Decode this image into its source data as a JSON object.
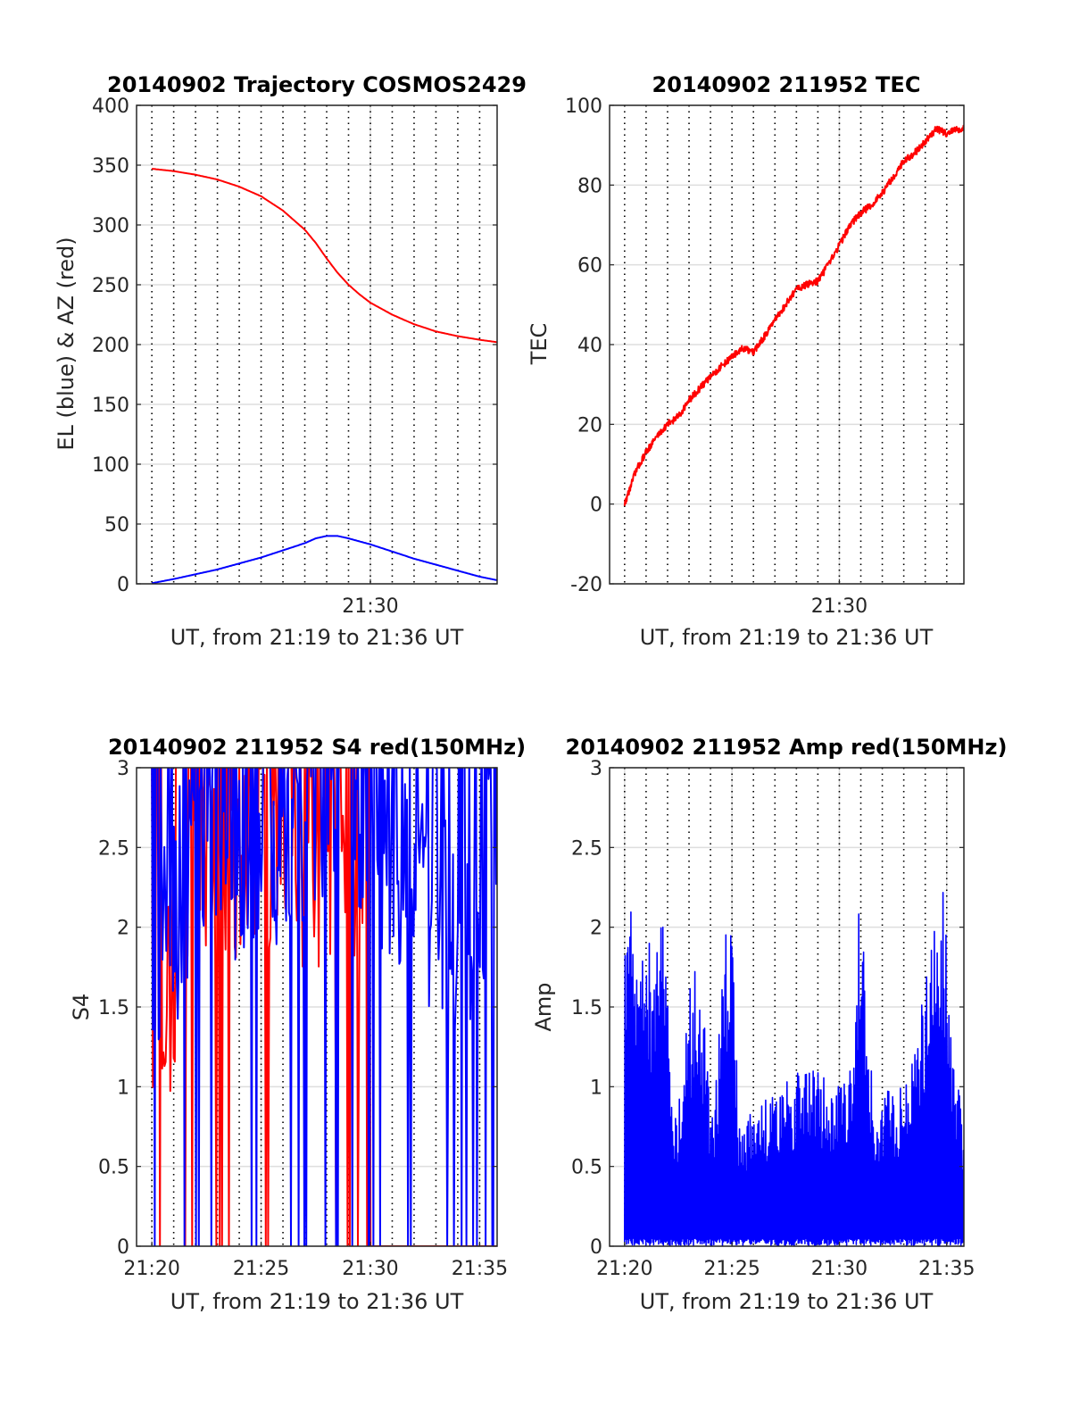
{
  "chart_data": [
    {
      "id": "traj",
      "type": "line",
      "title": "20140902 Trajectory COSMOS2429",
      "xlabel": "UT, from 21:19 to 21:36 UT",
      "ylabel": "EL (blue) & AZ (red)",
      "xlim_min": [
        19.3,
        35.8
      ],
      "ylim": [
        0,
        400
      ],
      "yticks": [
        0,
        50,
        100,
        150,
        200,
        250,
        300,
        350,
        400
      ],
      "xticks": [
        {
          "v": 30,
          "label": "21:30"
        }
      ],
      "grid": true,
      "series": [
        {
          "color": "#ff0000",
          "x": [
            20.0,
            21.0,
            22.0,
            23.0,
            24.0,
            25.0,
            26.0,
            27.0,
            27.5,
            28.0,
            28.5,
            29.0,
            29.5,
            30.0,
            31.0,
            32.0,
            33.0,
            34.0,
            35.0,
            35.8
          ],
          "y": [
            347,
            345,
            342,
            338,
            332,
            324,
            312,
            296,
            285,
            272,
            260,
            250,
            242,
            235,
            225,
            217,
            211,
            207,
            204,
            202
          ]
        },
        {
          "color": "#0000ff",
          "x": [
            20.0,
            21.0,
            22.0,
            23.0,
            24.0,
            25.0,
            26.0,
            27.0,
            27.5,
            28.0,
            28.5,
            29.0,
            30.0,
            31.0,
            32.0,
            33.0,
            34.0,
            35.0,
            35.8
          ],
          "y": [
            0.5,
            4,
            8,
            12,
            17,
            22,
            28,
            34,
            38,
            40,
            40,
            38,
            33,
            27,
            21,
            16,
            11,
            6,
            3
          ]
        }
      ]
    },
    {
      "id": "tec",
      "type": "line",
      "title": "20140902 211952 TEC",
      "xlabel": "UT, from 21:19 to 21:36 UT",
      "ylabel": "TEC",
      "xlim_min": [
        19.3,
        35.8
      ],
      "ylim": [
        -20,
        100
      ],
      "yticks": [
        -20,
        0,
        20,
        40,
        60,
        80,
        100
      ],
      "xticks": [
        {
          "v": 30,
          "label": "21:30"
        }
      ],
      "grid": true,
      "series": [
        {
          "color": "#ff0000",
          "noise": 0.9,
          "x": [
            20.0,
            20.5,
            21.0,
            21.5,
            22.0,
            22.5,
            23.0,
            24.0,
            25.0,
            25.5,
            26.0,
            26.5,
            27.0,
            27.5,
            28.0,
            29.0,
            29.5,
            30.0,
            30.5,
            31.0,
            31.5,
            32.0,
            33.0,
            33.5,
            34.0,
            34.5,
            35.0,
            35.5,
            35.8
          ],
          "y": [
            0,
            8,
            13,
            17,
            20,
            22,
            26,
            32,
            37,
            39,
            38,
            42,
            46,
            50,
            54,
            56,
            60,
            65,
            70,
            73,
            75,
            78,
            86,
            88,
            91,
            94,
            93,
            94,
            94
          ]
        }
      ]
    },
    {
      "id": "s4",
      "type": "line",
      "title": "20140902 211952 S4 red(150MHz)",
      "xlabel": "UT, from 21:19 to 21:36 UT",
      "ylabel": "S4",
      "xlim_min": [
        19.3,
        35.8
      ],
      "ylim": [
        0,
        3
      ],
      "yticks": [
        0,
        0.5,
        1,
        1.5,
        2,
        2.5,
        3
      ],
      "xticks": [
        {
          "v": 20,
          "label": "21:20"
        },
        {
          "v": 25,
          "label": "21:25"
        },
        {
          "v": 30,
          "label": "21:30"
        },
        {
          "v": 35,
          "label": "21:35"
        }
      ],
      "grid": true,
      "series": [
        {
          "color": "#ff0000",
          "style": "noisy",
          "start": 20.0,
          "end": 35.8,
          "n": 300,
          "zeroFrom": 30.0,
          "env_x": [
            20.0,
            20.5,
            21.0,
            22.0,
            23.0,
            24.0,
            26.0,
            28.0,
            29.0,
            30.0
          ],
          "env_y": [
            1.4,
            1.3,
            1.6,
            2.4,
            2.6,
            2.6,
            2.6,
            2.4,
            2.2,
            2.0
          ]
        },
        {
          "color": "#0000ff",
          "style": "noisy",
          "start": 20.0,
          "end": 35.8,
          "n": 360,
          "env_x": [
            20.0,
            21.0,
            22.0,
            24.0,
            26.0,
            28.0,
            30.0,
            31.0,
            32.0,
            33.0,
            34.0,
            35.0,
            35.8
          ],
          "env_y": [
            1.9,
            2.1,
            2.5,
            2.6,
            2.7,
            2.8,
            2.9,
            2.4,
            2.3,
            2.1,
            1.9,
            2.4,
            2.7
          ]
        }
      ]
    },
    {
      "id": "amp",
      "type": "line",
      "title": "20140902 211952 Amp red(150MHz)",
      "xlabel": "UT, from 21:19 to 21:36 UT",
      "ylabel": "Amp",
      "xlim_min": [
        19.3,
        35.8
      ],
      "ylim": [
        0,
        3
      ],
      "yticks": [
        0,
        0.5,
        1,
        1.5,
        2,
        2.5,
        3
      ],
      "xticks": [
        {
          "v": 20,
          "label": "21:20"
        },
        {
          "v": 25,
          "label": "21:25"
        },
        {
          "v": 30,
          "label": "21:30"
        },
        {
          "v": 35,
          "label": "21:35"
        }
      ],
      "grid": true,
      "series": [
        {
          "color": "#0000ff",
          "style": "spiky",
          "start": 20.0,
          "end": 35.8,
          "n": 700,
          "env_x": [
            20.0,
            20.3,
            20.6,
            21.0,
            21.3,
            21.7,
            22.0,
            22.3,
            22.7,
            23.0,
            23.3,
            23.7,
            24.0,
            24.3,
            24.7,
            25.0,
            25.3,
            25.6,
            26.0,
            27.0,
            28.0,
            29.0,
            30.0,
            30.5,
            30.9,
            31.3,
            31.7,
            32.0,
            33.0,
            33.5,
            34.0,
            34.3,
            34.6,
            35.0,
            35.3,
            35.8
          ],
          "env_y": [
            1.9,
            2.1,
            1.8,
            2.0,
            1.9,
            2.2,
            1.7,
            0.8,
            1.0,
            1.6,
            1.8,
            1.5,
            0.8,
            1.1,
            2.1,
            2.2,
            0.9,
            0.8,
            0.85,
            1.0,
            1.1,
            1.1,
            1.0,
            1.1,
            2.3,
            1.5,
            0.9,
            1.0,
            1.0,
            1.2,
            1.7,
            2.1,
            2.4,
            2.1,
            1.2,
            0.8
          ]
        }
      ]
    }
  ]
}
